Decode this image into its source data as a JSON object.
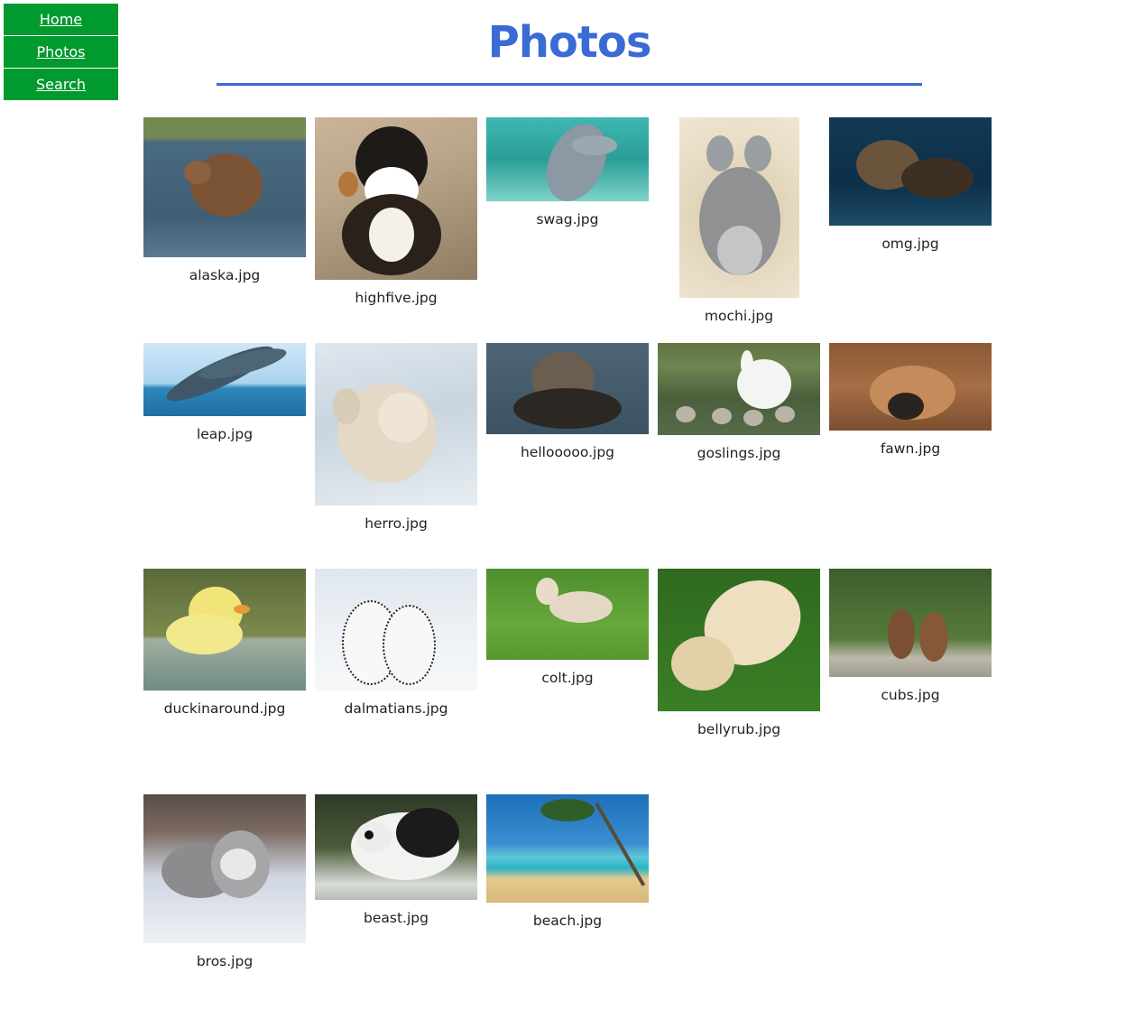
{
  "nav": {
    "items": [
      {
        "label": "Home"
      },
      {
        "label": "Photos"
      },
      {
        "label": "Search"
      }
    ]
  },
  "page": {
    "title": "Photos"
  },
  "colors": {
    "nav_bg": "#009a2e",
    "title": "#3a6ad4"
  },
  "photos": [
    {
      "caption": "alaska.jpg"
    },
    {
      "caption": "highfive.jpg"
    },
    {
      "caption": "swag.jpg"
    },
    {
      "caption": "mochi.jpg"
    },
    {
      "caption": "omg.jpg"
    },
    {
      "caption": "leap.jpg"
    },
    {
      "caption": "herro.jpg"
    },
    {
      "caption": "hellooooo.jpg"
    },
    {
      "caption": "goslings.jpg"
    },
    {
      "caption": "fawn.jpg"
    },
    {
      "caption": "duckinaround.jpg"
    },
    {
      "caption": "dalmatians.jpg"
    },
    {
      "caption": "colt.jpg"
    },
    {
      "caption": "bellyrub.jpg"
    },
    {
      "caption": "cubs.jpg"
    },
    {
      "caption": "bros.jpg"
    },
    {
      "caption": "beast.jpg"
    },
    {
      "caption": "beach.jpg"
    }
  ]
}
